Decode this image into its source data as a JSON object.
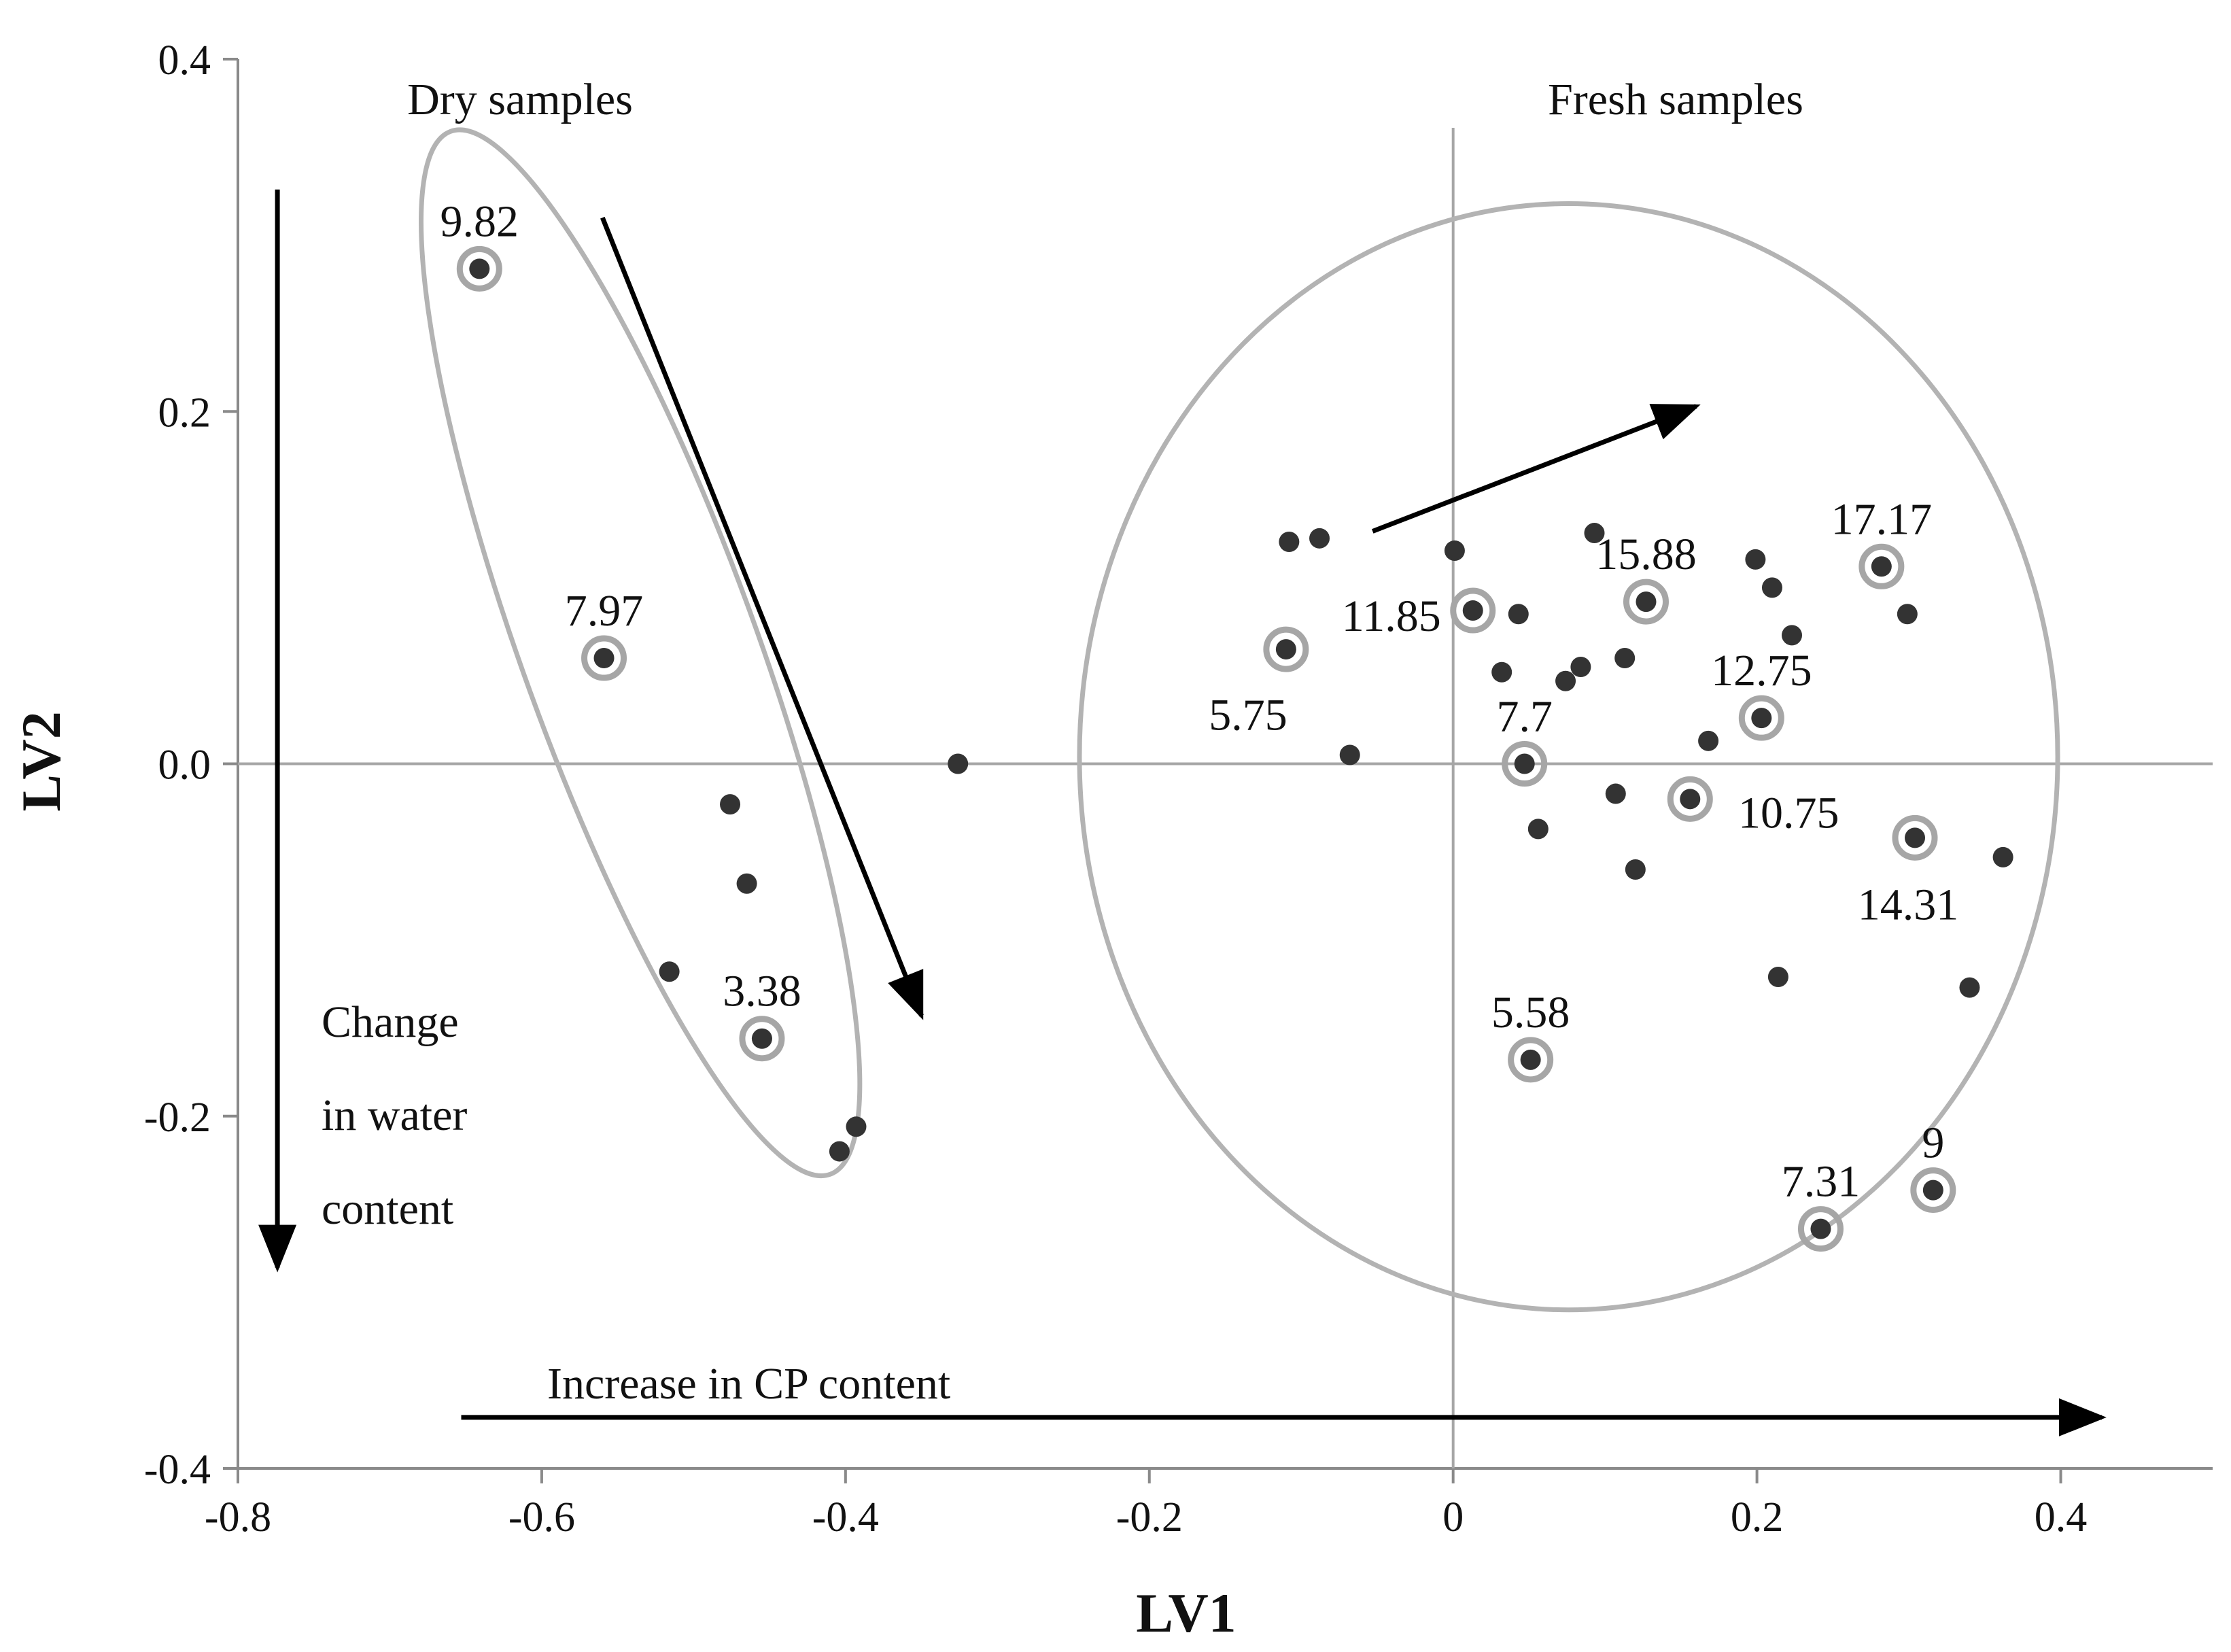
{
  "chart_data": {
    "type": "scatter",
    "title": "",
    "xlabel": "LV1",
    "ylabel": "LV2",
    "xlim": [
      -0.8,
      0.5
    ],
    "ylim": [
      -0.4,
      0.4
    ],
    "x_ticks": [
      -0.8,
      -0.6,
      -0.4,
      -0.2,
      0,
      0.2,
      0.4
    ],
    "x_tick_labels": [
      "-0.8",
      "-0.6",
      "-0.4",
      "-0.2",
      "0",
      "0.2",
      "0.4"
    ],
    "y_ticks": [
      0.4,
      0.2,
      0.0,
      -0.2,
      -0.4
    ],
    "y_tick_labels": [
      "0.4",
      "0.2",
      "0.0",
      "-0.2",
      "-0.4"
    ],
    "groups": [
      {
        "name": "Dry samples",
        "label": "Dry samples"
      },
      {
        "name": "Fresh samples",
        "label": "Fresh samples"
      }
    ],
    "annotations": {
      "water_line1": "Change",
      "water_line2": "in water",
      "water_line3": "content",
      "cp": "Increase in CP content"
    },
    "points": [
      {
        "x": -0.641,
        "y": 0.281,
        "group": "Dry samples",
        "highlight": true,
        "label": "9.82"
      },
      {
        "x": -0.559,
        "y": 0.06,
        "group": "Dry samples",
        "highlight": true,
        "label": "7.97"
      },
      {
        "x": -0.476,
        "y": -0.023,
        "group": "Dry samples",
        "highlight": false,
        "label": ""
      },
      {
        "x": -0.465,
        "y": -0.068,
        "group": "Dry samples",
        "highlight": false,
        "label": ""
      },
      {
        "x": -0.516,
        "y": -0.118,
        "group": "Dry samples",
        "highlight": false,
        "label": ""
      },
      {
        "x": -0.455,
        "y": -0.156,
        "group": "Dry samples",
        "highlight": true,
        "label": "3.38"
      },
      {
        "x": -0.393,
        "y": -0.206,
        "group": "Dry samples",
        "highlight": false,
        "label": ""
      },
      {
        "x": -0.404,
        "y": -0.22,
        "group": "Dry samples",
        "highlight": false,
        "label": ""
      },
      {
        "x": -0.326,
        "y": 0.0,
        "group": "Dry samples",
        "highlight": false,
        "label": ""
      },
      {
        "x": -0.108,
        "y": 0.126,
        "group": "Fresh samples",
        "highlight": false,
        "label": ""
      },
      {
        "x": -0.088,
        "y": 0.128,
        "group": "Fresh samples",
        "highlight": false,
        "label": ""
      },
      {
        "x": -0.11,
        "y": 0.065,
        "group": "Fresh samples",
        "highlight": true,
        "label": ""
      },
      {
        "x": -0.068,
        "y": 0.005,
        "group": "Fresh samples",
        "highlight": false,
        "label": ""
      },
      {
        "x": 0.001,
        "y": 0.121,
        "group": "Fresh samples",
        "highlight": false,
        "label": ""
      },
      {
        "x": 0.013,
        "y": 0.087,
        "group": "Fresh samples",
        "highlight": true,
        "label": "11.85"
      },
      {
        "x": 0.043,
        "y": 0.085,
        "group": "Fresh samples",
        "highlight": false,
        "label": ""
      },
      {
        "x": 0.032,
        "y": 0.052,
        "group": "Fresh samples",
        "highlight": false,
        "label": ""
      },
      {
        "x": 0.047,
        "y": 0.0,
        "group": "Fresh samples",
        "highlight": true,
        "label": "7.7"
      },
      {
        "x": 0.056,
        "y": -0.037,
        "group": "Fresh samples",
        "highlight": false,
        "label": ""
      },
      {
        "x": 0.074,
        "y": 0.047,
        "group": "Fresh samples",
        "highlight": false,
        "label": ""
      },
      {
        "x": 0.084,
        "y": 0.055,
        "group": "Fresh samples",
        "highlight": false,
        "label": ""
      },
      {
        "x": 0.093,
        "y": 0.131,
        "group": "Fresh samples",
        "highlight": false,
        "label": ""
      },
      {
        "x": 0.107,
        "y": -0.017,
        "group": "Fresh samples",
        "highlight": false,
        "label": ""
      },
      {
        "x": 0.113,
        "y": 0.06,
        "group": "Fresh samples",
        "highlight": false,
        "label": ""
      },
      {
        "x": 0.12,
        "y": -0.06,
        "group": "Fresh samples",
        "highlight": false,
        "label": ""
      },
      {
        "x": 0.127,
        "y": 0.092,
        "group": "Fresh samples",
        "highlight": true,
        "label": "15.88"
      },
      {
        "x": 0.156,
        "y": -0.02,
        "group": "Fresh samples",
        "highlight": true,
        "label": "10.75"
      },
      {
        "x": 0.168,
        "y": 0.013,
        "group": "Fresh samples",
        "highlight": false,
        "label": ""
      },
      {
        "x": 0.199,
        "y": 0.116,
        "group": "Fresh samples",
        "highlight": false,
        "label": ""
      },
      {
        "x": 0.203,
        "y": 0.026,
        "group": "Fresh samples",
        "highlight": true,
        "label": "12.75"
      },
      {
        "x": 0.21,
        "y": 0.1,
        "group": "Fresh samples",
        "highlight": false,
        "label": ""
      },
      {
        "x": 0.223,
        "y": 0.073,
        "group": "Fresh samples",
        "highlight": false,
        "label": ""
      },
      {
        "x": 0.214,
        "y": -0.121,
        "group": "Fresh samples",
        "highlight": false,
        "label": ""
      },
      {
        "x": 0.051,
        "y": -0.168,
        "group": "Fresh samples",
        "highlight": true,
        "label": "5.58"
      },
      {
        "x": 0.242,
        "y": -0.264,
        "group": "Fresh samples",
        "highlight": true,
        "label": "7.31"
      },
      {
        "x": 0.282,
        "y": 0.112,
        "group": "Fresh samples",
        "highlight": true,
        "label": "17.17"
      },
      {
        "x": 0.299,
        "y": 0.085,
        "group": "Fresh samples",
        "highlight": false,
        "label": ""
      },
      {
        "x": 0.304,
        "y": -0.042,
        "group": "Fresh samples",
        "highlight": true,
        "label": "14.31"
      },
      {
        "x": 0.316,
        "y": -0.242,
        "group": "Fresh samples",
        "highlight": true,
        "label": "9"
      },
      {
        "x": 0.34,
        "y": -0.127,
        "group": "Fresh samples",
        "highlight": false,
        "label": ""
      },
      {
        "x": 0.362,
        "y": -0.053,
        "group": "Fresh samples",
        "highlight": false,
        "label": ""
      }
    ],
    "extra_labels": [
      {
        "text": "5.75",
        "x": -0.135,
        "y": 0.027
      }
    ],
    "arrows": [
      {
        "name": "water-content-arrow",
        "from": [
          -0.774,
          0.326
        ],
        "to": [
          -0.774,
          -0.286
        ]
      },
      {
        "name": "cp-content-arrow",
        "from": [
          -0.653,
          -0.371
        ],
        "to": [
          0.427,
          -0.371
        ]
      },
      {
        "name": "dry-trend-arrow",
        "from": [
          -0.56,
          0.31
        ],
        "to": [
          -0.35,
          -0.143
        ]
      },
      {
        "name": "fresh-trend-arrow",
        "from": [
          -0.053,
          0.132
        ],
        "to": [
          0.16,
          0.203
        ]
      }
    ],
    "ellipses": [
      {
        "name": "dry-samples-ellipse",
        "cx": -0.535,
        "cy": 0.063,
        "rx": 0.077,
        "ry": 0.315,
        "rotate": -20
      },
      {
        "name": "fresh-samples-ellipse",
        "cx": 0.076,
        "cy": 0.004,
        "rx": 0.322,
        "ry": 0.314,
        "rotate": 0
      }
    ],
    "grid": false,
    "legend": "none"
  }
}
